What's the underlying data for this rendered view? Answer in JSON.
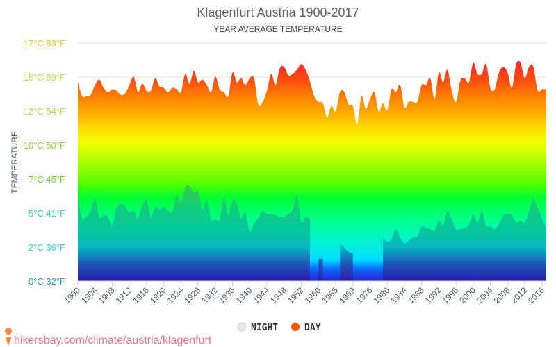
{
  "chart_data": {
    "type": "area",
    "title": "Klagenfurt Austria 1900-2017",
    "subtitle": "YEAR AVERAGE TEMPERATURE",
    "ylabel": "TEMPERATURE",
    "xlabel": "",
    "ylim": [
      0,
      17
    ],
    "grid": true,
    "legend_position": "bottom",
    "y_ticks": [
      {
        "label": "0°C 32°F",
        "color": "#1ea0e8"
      },
      {
        "label": "2°C 36°F",
        "color": "#22e0c8"
      },
      {
        "label": "5°C 41°F",
        "color": "#22e0b0"
      },
      {
        "label": "7°C 45°F",
        "color": "#66dd22"
      },
      {
        "label": "10°C 50°F",
        "color": "#88dd22"
      },
      {
        "label": "12°C 54°F",
        "color": "#b8e040"
      },
      {
        "label": "15°C 59°F",
        "color": "#c5e03a"
      },
      {
        "label": "17°C 63°F",
        "color": "#f5c518"
      }
    ],
    "x": [
      1900,
      1901,
      1902,
      1903,
      1904,
      1905,
      1906,
      1907,
      1908,
      1909,
      1910,
      1911,
      1912,
      1913,
      1914,
      1915,
      1916,
      1917,
      1918,
      1919,
      1920,
      1921,
      1922,
      1923,
      1924,
      1925,
      1926,
      1927,
      1928,
      1929,
      1930,
      1931,
      1932,
      1933,
      1934,
      1935,
      1936,
      1937,
      1938,
      1939,
      1940,
      1941,
      1942,
      1943,
      1944,
      1945,
      1946,
      1947,
      1948,
      1949,
      1950,
      1951,
      1952,
      1953,
      1954,
      1955,
      1960,
      1961,
      1962,
      1963,
      1965,
      1966,
      1967,
      1968,
      1969,
      1970,
      1971,
      1972,
      1976,
      1977,
      1978,
      1979,
      1980,
      1981,
      1982,
      1983,
      1984,
      1985,
      1986,
      1987,
      1988,
      1989,
      1990,
      1991,
      1992,
      1993,
      1994,
      1995,
      1996,
      1997,
      1998,
      1999,
      2000,
      2001,
      2002,
      2003,
      2004,
      2005,
      2006,
      2007,
      2008,
      2009,
      2010,
      2011,
      2012,
      2013,
      2014,
      2015,
      2016,
      2017
    ],
    "x_tick_labels": [
      "1900",
      "1904",
      "1908",
      "1912",
      "1916",
      "1920",
      "1924",
      "1928",
      "1932",
      "1936",
      "1940",
      "1944",
      "1948",
      "1952",
      "1960",
      "1965",
      "1969",
      "1976",
      "1980",
      "1984",
      "1988",
      "1992",
      "1996",
      "2000",
      "2004",
      "2008",
      "2012",
      "2016"
    ],
    "series": [
      {
        "name": "DAY",
        "color": "#ff5500",
        "values": [
          14.2,
          13.2,
          13.2,
          13.3,
          14.0,
          14.4,
          13.8,
          13.5,
          13.7,
          13.6,
          13.3,
          13.4,
          14.0,
          14.6,
          13.5,
          14.1,
          13.6,
          13.6,
          14.5,
          13.9,
          13.8,
          13.5,
          13.8,
          13.7,
          13.5,
          14.8,
          14.1,
          15.0,
          14.2,
          14.4,
          14.0,
          13.5,
          14.6,
          13.7,
          13.5,
          13.2,
          14.9,
          14.2,
          14.5,
          14.0,
          14.5,
          14.5,
          12.6,
          12.8,
          13.6,
          14.8,
          14.0,
          15.2,
          15.3,
          14.7,
          14.8,
          15.1,
          15.5,
          15.1,
          14.3,
          13.2,
          12.8,
          12.7,
          11.7,
          12.5,
          12.1,
          13.5,
          13.5,
          12.6,
          12.5,
          11.2,
          13.2,
          12.3,
          13.0,
          13.5,
          12.1,
          12.7,
          12.2,
          13.7,
          13.5,
          14.0,
          12.4,
          12.8,
          12.8,
          12.8,
          14.0,
          14.0,
          14.5,
          13.0,
          14.9,
          14.2,
          15.1,
          13.6,
          12.8,
          14.3,
          14.5,
          14.2,
          15.6,
          14.8,
          14.8,
          15.5,
          13.8,
          13.7,
          14.9,
          15.3,
          14.9,
          13.8,
          15.5,
          15.6,
          14.5,
          15.3,
          15.3,
          13.6,
          13.7,
          13.7
        ]
      },
      {
        "name": "NIGHT",
        "color": "#cccccc",
        "values": [
          5.8,
          4.5,
          4.6,
          5.0,
          5.9,
          4.6,
          4.7,
          4.6,
          4.0,
          5.2,
          5.5,
          5.3,
          4.9,
          5.0,
          4.5,
          5.4,
          5.8,
          4.6,
          5.3,
          5.1,
          5.3,
          5.0,
          5.0,
          6.2,
          5.6,
          6.7,
          6.8,
          6.3,
          6.4,
          5.1,
          5.8,
          4.4,
          4.4,
          4.4,
          6.0,
          4.7,
          5.8,
          5.5,
          4.5,
          4.9,
          3.5,
          4.1,
          4.5,
          5.0,
          4.8,
          4.8,
          4.7,
          4.6,
          4.6,
          4.8,
          5.1,
          6.1,
          4.2,
          4.6,
          4.5,
          null,
          1.6,
          1.6,
          null,
          null,
          null,
          2.7,
          2.4,
          2.1,
          2.0,
          null,
          null,
          null,
          null,
          null,
          null,
          3.1,
          2.8,
          3.0,
          3.7,
          3.1,
          2.7,
          2.9,
          3.1,
          3.2,
          3.9,
          3.8,
          3.7,
          3.6,
          4.3,
          4.0,
          5.0,
          4.4,
          3.7,
          3.7,
          3.8,
          4.0,
          4.8,
          4.2,
          5.0,
          4.0,
          3.9,
          3.7,
          4.1,
          4.7,
          4.8,
          4.7,
          4.2,
          4.3,
          4.2,
          5.0,
          5.9,
          5.2,
          4.5,
          3.7
        ]
      }
    ]
  },
  "legend": {
    "night_label": "NIGHT",
    "day_label": "DAY"
  },
  "source": {
    "text": "hikersbay.com/climate/austria/klagenfurt"
  }
}
